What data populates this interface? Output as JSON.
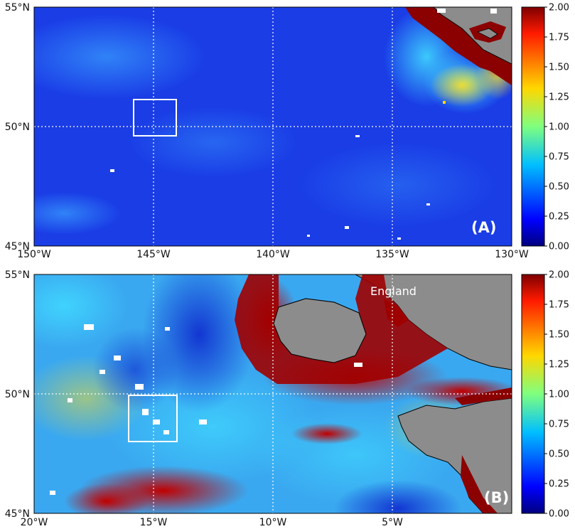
{
  "panels": [
    {
      "id": "A",
      "label": "(A)",
      "lat_labels": [
        "55°N",
        "50°N",
        "45°N"
      ],
      "lon_labels": [
        "150°W",
        "145°W",
        "140°W",
        "135°W",
        "130°W"
      ],
      "place_labels": []
    },
    {
      "id": "B",
      "label": "(B)",
      "lat_labels": [
        "55°N",
        "50°N",
        "45°N"
      ],
      "lon_labels": [
        "20°W",
        "15°W",
        "10°W",
        "5°W"
      ],
      "place_labels": [
        "England"
      ]
    }
  ],
  "colorbar": {
    "ticks": [
      "2.00",
      "1.75",
      "1.50",
      "1.25",
      "1.00",
      "0.75",
      "0.50",
      "0.25",
      "0.00"
    ],
    "min": 0,
    "max": 2,
    "colormap": "jet"
  },
  "colors": {
    "ocean_low": "#1a3de0",
    "land": "#8c8c8c",
    "high": "#8b0000",
    "grid": "#ffffff"
  }
}
